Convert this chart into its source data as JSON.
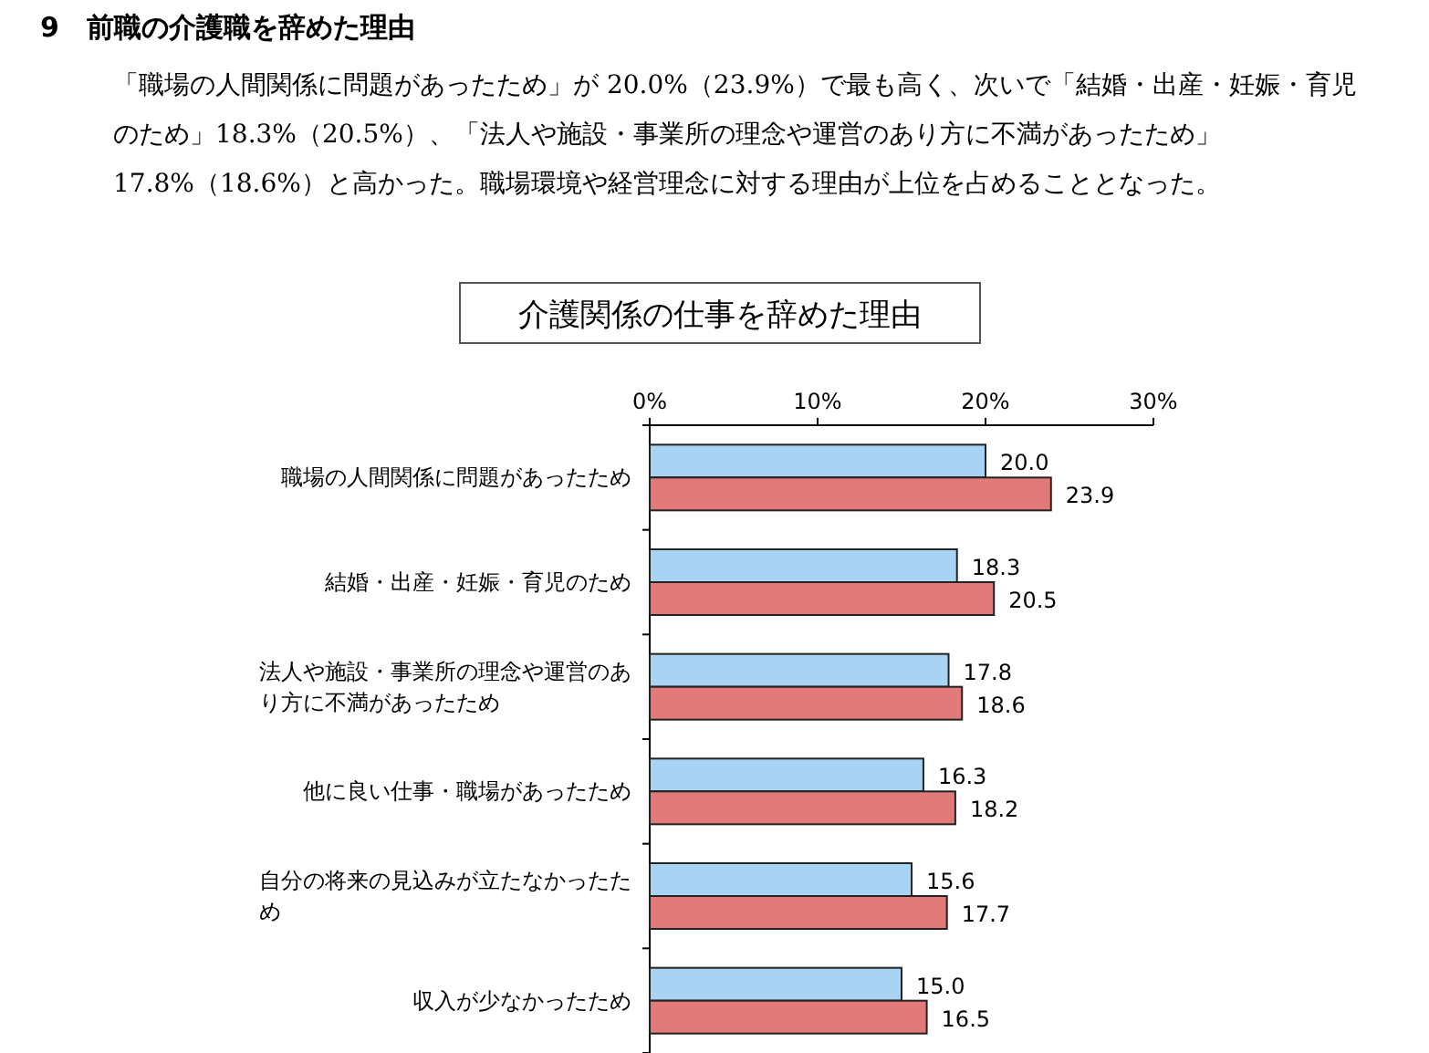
{
  "chart_data": {
    "type": "bar",
    "orientation": "horizontal",
    "title": "介護関係の仕事を辞めた理由",
    "annotations": [
      "9　前職の介護職を辞めた理由",
      "「職場の人間関係に問題があったため」が 20.0%（23.9%）で最も高く、次いで「結婚・出産・妊娠・育児のため」18.3%（20.5%）、「法人や施設・事業所の理念や運営のあり方に不満があったため」17.8%（18.6%）と高かった。職場環境や経営理念に対する理由が上位を占めることとなった。"
    ],
    "categories": [
      "職場の人間関係に問題があったため",
      "結婚・出産・妊娠・育児のため",
      "法人や施設・事業所の理念や運営のあり方に不満があったため",
      "他に良い仕事・職場があったため",
      "自分の将来の見込みが立たなかったため",
      "収入が少なかったため"
    ],
    "series": [
      {
        "color": "#a8d3f2",
        "values": [
          20.0,
          18.3,
          17.8,
          16.3,
          15.6,
          15.0
        ],
        "value_labels": [
          "20.0",
          "18.3",
          "17.8",
          "16.3",
          "15.6",
          "15.0"
        ]
      },
      {
        "color": "#e27a7a",
        "values": [
          23.9,
          20.5,
          18.6,
          18.2,
          17.7,
          16.5
        ],
        "value_labels": [
          "23.9",
          "20.5",
          "18.6",
          "18.2",
          "17.7",
          "16.5"
        ]
      }
    ],
    "xlim": [
      0,
      30
    ],
    "xticks": [
      {
        "value": 0,
        "label": "0%"
      },
      {
        "value": 10,
        "label": "10%"
      },
      {
        "value": 20,
        "label": "20%"
      },
      {
        "value": 30,
        "label": "30%"
      }
    ],
    "grid": false
  }
}
